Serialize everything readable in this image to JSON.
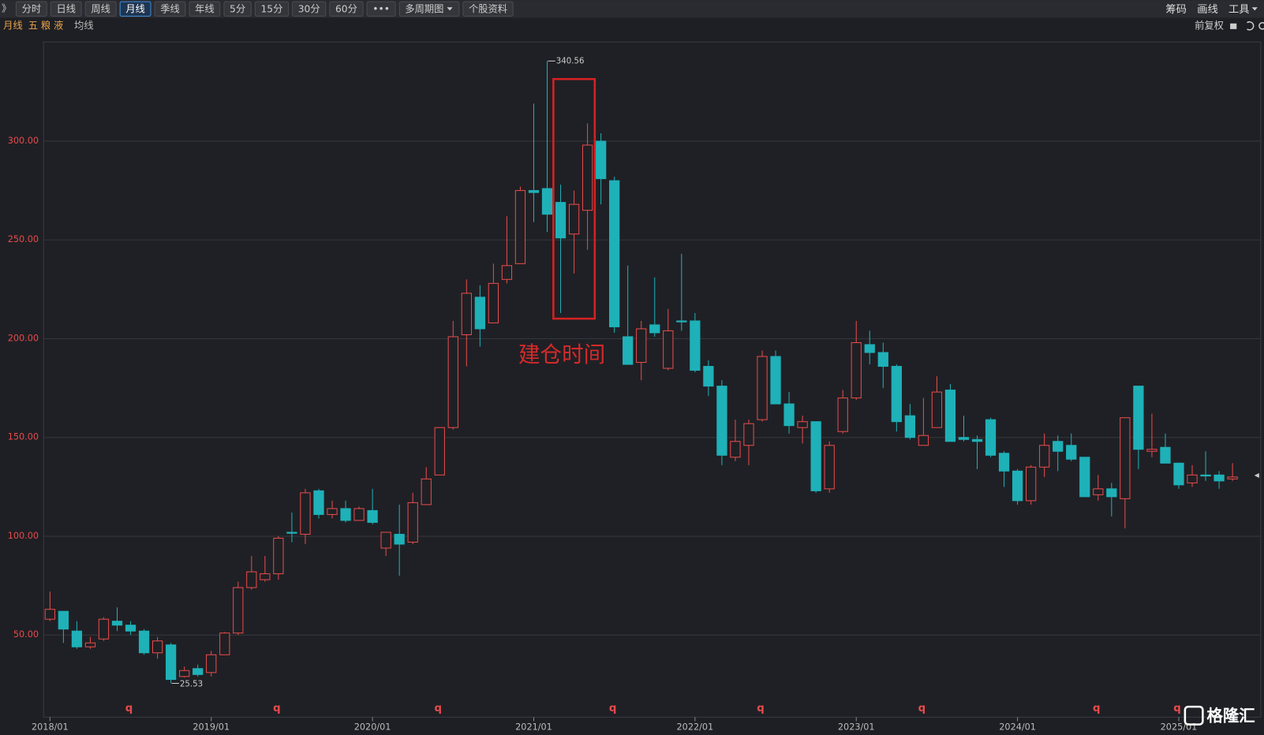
{
  "toolbar": {
    "collapse": "》",
    "buttons": [
      "分时",
      "日线",
      "周线",
      "月线",
      "季线",
      "年线",
      "5分",
      "15分",
      "30分",
      "60分",
      "•••",
      "多周期图",
      "个股资料"
    ],
    "active": "月线",
    "right": [
      "筹码",
      "画线",
      "工具"
    ]
  },
  "info": {
    "period": "月线",
    "name": "五 粮 液",
    "ma": "均线",
    "adjust": "前复权"
  },
  "watermark": "格隆汇",
  "chart_data": {
    "type": "candlestick",
    "categories": [
      "2018/01",
      null,
      null,
      null,
      null,
      null,
      null,
      null,
      null,
      null,
      null,
      null,
      "2019/01",
      null,
      null,
      null,
      null,
      null,
      null,
      null,
      null,
      null,
      null,
      null,
      "2020/01",
      null,
      null,
      null,
      null,
      null,
      null,
      null,
      null,
      null,
      null,
      null,
      "2021/01",
      null,
      null,
      null,
      null,
      null,
      null,
      null,
      null,
      null,
      null,
      null,
      "2022/01",
      null,
      null,
      null,
      null,
      null,
      null,
      null,
      null,
      null,
      null,
      null,
      "2023/01",
      null,
      null,
      null,
      null,
      null,
      null,
      null,
      null,
      null,
      null,
      null,
      "2024/01",
      null,
      null,
      null,
      null,
      null,
      null,
      null,
      null,
      null,
      null,
      null,
      "2025/01",
      null,
      null,
      null,
      null
    ],
    "open": [
      58,
      62,
      52,
      44,
      48,
      57,
      55,
      52,
      41,
      45,
      29,
      33,
      31,
      40,
      51,
      74,
      78,
      81,
      102,
      101,
      123,
      111,
      114,
      108,
      113,
      94,
      101,
      97,
      116,
      131,
      155,
      202,
      221,
      208,
      230,
      238,
      275,
      276,
      269,
      253,
      265,
      300,
      280,
      201,
      188,
      207,
      185,
      209,
      209,
      186,
      176,
      140,
      146,
      159,
      191,
      167,
      155,
      158,
      124,
      153,
      170,
      197,
      193,
      186,
      161,
      146,
      155,
      174,
      150,
      149,
      159,
      142,
      133,
      118,
      135,
      148,
      146,
      140,
      121,
      124,
      119,
      176,
      143,
      145,
      137,
      127,
      131,
      131,
      129
    ],
    "high": [
      72,
      62,
      57,
      49,
      59,
      64,
      57,
      53,
      49,
      46,
      34,
      35,
      42,
      51.5,
      77,
      90,
      90,
      100,
      112,
      124,
      124,
      118,
      118,
      115,
      124,
      102,
      116,
      122,
      135,
      155,
      209,
      230,
      227,
      238,
      262,
      277,
      319,
      340.56,
      278,
      275,
      309,
      304,
      282,
      237,
      209,
      231,
      215,
      243,
      213,
      189,
      179,
      159,
      159,
      194,
      194,
      173,
      161,
      158,
      148,
      174,
      209,
      204,
      198,
      187,
      167,
      170,
      181,
      177,
      161,
      151,
      160,
      143,
      134,
      136,
      152,
      151,
      152,
      140,
      131,
      127,
      160,
      176,
      162,
      152,
      137,
      136,
      143,
      133,
      137
    ],
    "low": [
      57,
      46,
      43,
      43,
      47,
      52,
      50,
      40,
      38,
      25.53,
      28.5,
      29,
      29,
      40,
      50,
      73,
      77,
      78,
      97,
      96,
      109,
      109,
      107,
      108,
      106,
      90,
      80,
      96,
      116,
      131,
      154,
      186,
      196,
      208,
      228,
      238,
      259,
      254,
      213,
      233,
      245,
      268,
      203,
      187,
      179,
      201,
      184,
      204,
      183,
      171,
      136,
      138,
      136,
      158,
      167,
      152,
      147,
      122,
      122,
      152,
      169,
      187,
      175,
      153,
      149,
      146,
      155,
      148,
      148,
      134,
      140,
      125,
      116,
      116,
      130,
      133,
      138,
      120,
      118,
      110,
      104,
      134,
      140,
      137,
      124,
      125,
      128,
      124,
      128
    ],
    "close": [
      63,
      53,
      44,
      46,
      58,
      55,
      52,
      41,
      47,
      27.5,
      32,
      30,
      40,
      51,
      74,
      82,
      81,
      99,
      101.5,
      122,
      111,
      114,
      108,
      114,
      107,
      102,
      96,
      117,
      129,
      155,
      201,
      223,
      205,
      228,
      237,
      275,
      274,
      263,
      251,
      268,
      298,
      281,
      206,
      187,
      205,
      203,
      204,
      208.5,
      184,
      176,
      141,
      148,
      157,
      191,
      167,
      156,
      158,
      123,
      146,
      170,
      198,
      193,
      186,
      158,
      150,
      151,
      173,
      148,
      149,
      148,
      141,
      133,
      118,
      135,
      146,
      143,
      139,
      120,
      124,
      120,
      160,
      144,
      144,
      137,
      126,
      131,
      130.5,
      128,
      130
    ],
    "up_color": "#e84b4b",
    "down_color": "#1fb1b8",
    "ylim": [
      8.4,
      350.2
    ],
    "yticks": [
      {
        "value": 50,
        "label": "50.00"
      },
      {
        "value": 100,
        "label": "100.00"
      },
      {
        "value": 150,
        "label": "150.00"
      },
      {
        "value": 200,
        "label": "200.00"
      },
      {
        "value": 250,
        "label": "250.00"
      },
      {
        "value": 300,
        "label": "300.00"
      }
    ],
    "grid": true,
    "annotation": "建仓时间",
    "markers": {
      "label": "q",
      "at": [
        6,
        17,
        29,
        42,
        53,
        65,
        78,
        84
      ]
    }
  }
}
